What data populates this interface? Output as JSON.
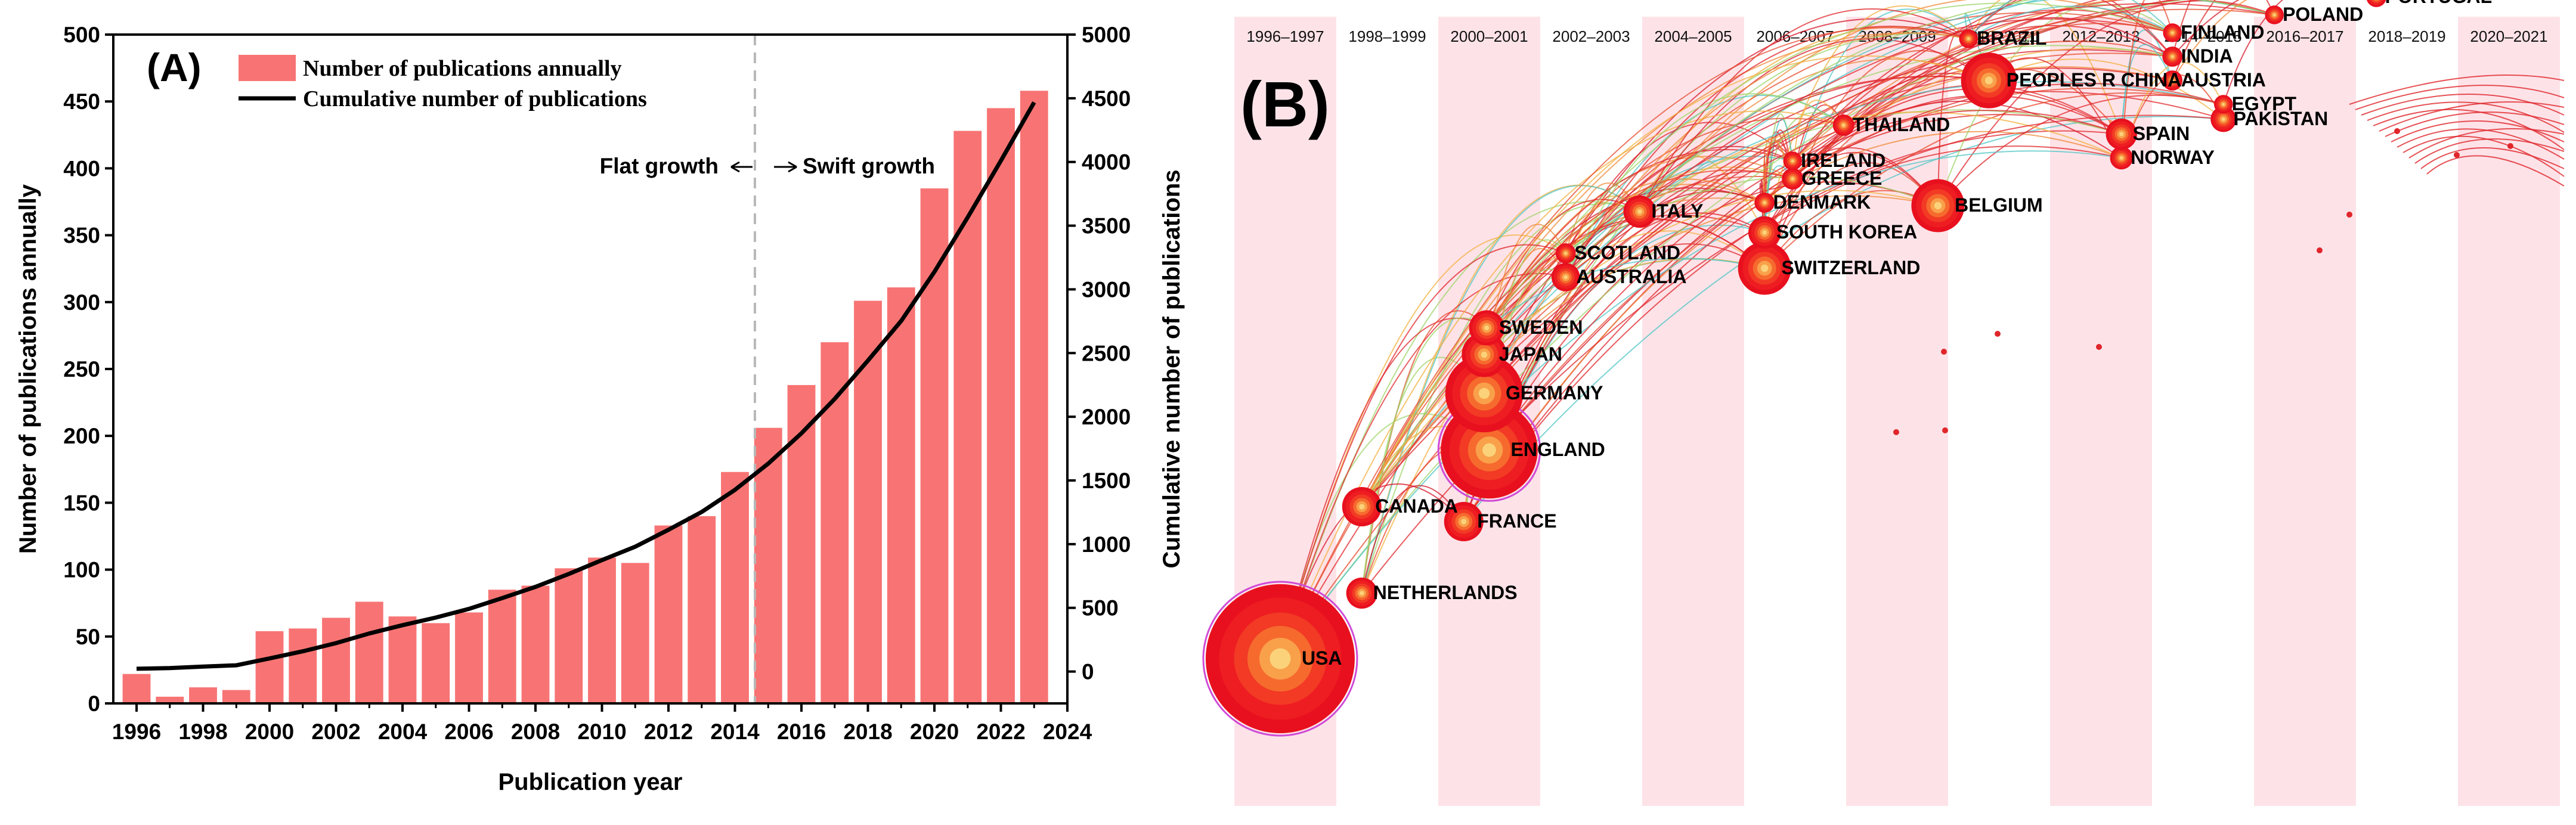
{
  "chart_data": [
    {
      "panel_label": "(A)",
      "type": "bar+line",
      "xlabel": "Publication year",
      "ylabel": "Number of publications annually",
      "ylabel_right": "Cumulative number of publications",
      "ylim": [
        0,
        500
      ],
      "ylim_right": [
        -250,
        5000
      ],
      "xlim": [
        1995.3,
        2024
      ],
      "x_ticks": [
        "1996",
        "1998",
        "2000",
        "2002",
        "2004",
        "2006",
        "2008",
        "2010",
        "2012",
        "2014",
        "2016",
        "2018",
        "2020",
        "2022",
        "2024"
      ],
      "y_ticks": [
        "0",
        "50",
        "100",
        "150",
        "200",
        "250",
        "300",
        "350",
        "400",
        "450",
        "500"
      ],
      "y_ticks_right": [
        "0",
        "500",
        "1000",
        "1500",
        "2000",
        "2500",
        "3000",
        "3500",
        "4000",
        "4500",
        "5000"
      ],
      "series": [
        {
          "name": "Number of publications annually",
          "kind": "bar",
          "color": "#f87474",
          "x": [
            1996,
            1997,
            1998,
            1999,
            2000,
            2001,
            2002,
            2003,
            2004,
            2005,
            2006,
            2007,
            2008,
            2009,
            2010,
            2011,
            2012,
            2013,
            2014,
            2015,
            2016,
            2017,
            2018,
            2019,
            2020,
            2021,
            2022,
            2023
          ],
          "values": [
            22,
            5,
            12,
            10,
            54,
            56,
            64,
            76,
            65,
            60,
            68,
            85,
            88,
            101,
            109,
            105,
            133,
            140,
            173,
            206,
            238,
            270,
            301,
            311,
            385,
            428,
            445,
            458
          ]
        },
        {
          "name": "Cumulative number of publications",
          "kind": "line",
          "axis": "right",
          "color": "#000000",
          "x": [
            1996,
            1997,
            1998,
            1999,
            2000,
            2001,
            2002,
            2003,
            2004,
            2005,
            2006,
            2007,
            2008,
            2009,
            2010,
            2011,
            2012,
            2013,
            2014,
            2015,
            2016,
            2017,
            2018,
            2019,
            2020,
            2021,
            2022,
            2023
          ],
          "values": [
            22,
            27,
            39,
            49,
            103,
            159,
            223,
            299,
            364,
            424,
            492,
            577,
            665,
            766,
            875,
            980,
            1113,
            1253,
            1426,
            1632,
            1870,
            2140,
            2441,
            2752,
            3137,
            3565,
            4010,
            4468
          ]
        }
      ],
      "divider_x": 2014.6,
      "annotations": {
        "left": "Flat growth",
        "right": "Swift growth"
      }
    },
    {
      "panel_label": "(B)",
      "type": "timeline",
      "periods": [
        "1996–1997",
        "1998–1999",
        "2000–2001",
        "2002–2003",
        "2004–2005",
        "2006–2007",
        "2008–2009",
        "2010–2011",
        "2012–2013",
        "2014–2015",
        "2016–2017",
        "2018–2019",
        "2020–2021"
      ],
      "nodes": [
        {
          "name": "USA",
          "year": 1996.9,
          "rank": 0.08,
          "size": 1.0
        },
        {
          "name": "NETHERLANDS",
          "year": 1998.5,
          "rank": 0.19,
          "size": 0.14
        },
        {
          "name": "CANADA",
          "year": 1998.5,
          "rank": 0.335,
          "size": 0.2
        },
        {
          "name": "FRANCE",
          "year": 2000.5,
          "rank": 0.31,
          "size": 0.2
        },
        {
          "name": "ENGLAND",
          "year": 2001.0,
          "rank": 0.43,
          "size": 0.62
        },
        {
          "name": "GERMANY",
          "year": 2000.9,
          "rank": 0.525,
          "size": 0.48
        },
        {
          "name": "JAPAN",
          "year": 2000.9,
          "rank": 0.59,
          "size": 0.24
        },
        {
          "name": "SWEDEN",
          "year": 2000.95,
          "rank": 0.635,
          "size": 0.17
        },
        {
          "name": "AUSTRALIA",
          "year": 2002.5,
          "rank": 0.72,
          "size": 0.12
        },
        {
          "name": "SCOTLAND",
          "year": 2002.5,
          "rank": 0.76,
          "size": 0.06
        },
        {
          "name": "ITALY",
          "year": 2003.95,
          "rank": 0.83,
          "size": 0.15
        },
        {
          "name": "SWITZERLAND",
          "year": 2006.4,
          "rank": 0.735,
          "size": 0.3
        },
        {
          "name": "SOUTH KOREA",
          "year": 2006.4,
          "rank": 0.795,
          "size": 0.15
        },
        {
          "name": "DENMARK",
          "year": 2006.4,
          "rank": 0.845,
          "size": 0.06
        },
        {
          "name": "GREECE",
          "year": 2006.95,
          "rank": 0.885,
          "size": 0.07
        },
        {
          "name": "IRELAND",
          "year": 2006.95,
          "rank": 0.915,
          "size": 0.05
        },
        {
          "name": "THAILAND",
          "year": 2007.95,
          "rank": 0.975,
          "size": 0.07
        },
        {
          "name": "BELGIUM",
          "year": 2009.8,
          "rank": 0.84,
          "size": 0.3
        },
        {
          "name": "PEOPLES R CHINA",
          "year": 2010.8,
          "rank": 1.05,
          "size": 0.32
        },
        {
          "name": "BRAZIL",
          "year": 2010.4,
          "rank": 1.12,
          "size": 0.05
        },
        {
          "name": "NORWAY",
          "year": 2013.4,
          "rank": 0.92,
          "size": 0.08
        },
        {
          "name": "SPAIN",
          "year": 2013.4,
          "rank": 0.96,
          "size": 0.14
        },
        {
          "name": "PAKISTAN",
          "year": 2015.4,
          "rank": 0.985,
          "size": 0.1
        },
        {
          "name": "EGYPT",
          "year": 2015.4,
          "rank": 1.01,
          "size": 0.05
        },
        {
          "name": "AUSTRIA",
          "year": 2014.4,
          "rank": 1.05,
          "size": 0.06
        },
        {
          "name": "INDIA",
          "year": 2014.4,
          "rank": 1.09,
          "size": 0.06
        },
        {
          "name": "FINLAND",
          "year": 2014.4,
          "rank": 1.13,
          "size": 0.05
        },
        {
          "name": "POLAND",
          "year": 2016.4,
          "rank": 1.16,
          "size": 0.05
        },
        {
          "name": "PORTUGAL",
          "year": 2018.4,
          "rank": 1.19,
          "size": 0.06
        }
      ]
    }
  ]
}
